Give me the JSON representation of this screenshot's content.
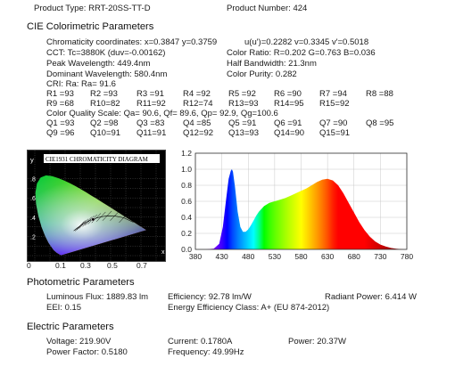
{
  "header": {
    "product_type": "Product Type: RRT-20SS-TT-D",
    "product_number": "Product Number: 424"
  },
  "cie": {
    "title": "CIE Colorimetric Parameters",
    "chromaticity": "Chromaticity coordinates: x=0.3847 y=0.3759",
    "uv": "u(u')=0.2282 v=0.3345 v'=0.5018",
    "cct": "CCT: Tc=3880K (duv=-0.00162)",
    "color_ratio": "Color Ratio: R=0.202  G=0.763  B=0.036",
    "peak_wavelength": "Peak Wavelength: 449.4nm",
    "half_bandwidth": "Half Bandwidth: 21.3nm",
    "dominant_wavelength": "Dominant Wavelength: 580.4nm",
    "color_purity": "Color Purity: 0.282",
    "cri": "CRI: Ra: Ra= 91.6",
    "r_values": [
      [
        "R1 =93",
        "R2 =93",
        "R3 =91",
        "R4 =92",
        "R5 =92",
        "R6 =90",
        "R7 =94",
        "R8 =88"
      ],
      [
        "R9 =68",
        "R10=82",
        "R11=92",
        "R12=74",
        "R13=93",
        "R14=95",
        "R15=92",
        ""
      ]
    ],
    "cqs": "Color Quality Scale: Qa= 90.6, Qf= 89.6, Qp= 92.9, Qg=100.6",
    "q_values": [
      [
        "Q1 =93",
        "Q2 =98",
        "Q3 =83",
        "Q4 =85",
        "Q5 =91",
        "Q6 =91",
        "Q7 =90",
        "Q8 =95"
      ],
      [
        "Q9 =96",
        "Q10=91",
        "Q11=91",
        "Q12=92",
        "Q13=93",
        "Q14=90",
        "Q15=91",
        ""
      ]
    ]
  },
  "cie_diagram": {
    "title": "CIE1931 CHROMATICITY DIAGRAM",
    "y_axis_letter": "y",
    "x_axis_letter": "x",
    "y_ticks": [
      ".8",
      ".6",
      ".4",
      ".2"
    ],
    "x_ticks": [
      "0",
      "0.1",
      "0.3",
      "0.5",
      "0.7"
    ],
    "measured_point": {
      "x": 0.3847,
      "y": 0.3759
    }
  },
  "chart_data": {
    "type": "area",
    "title": "",
    "xlabel": "",
    "ylabel": "",
    "xlim": [
      380,
      780
    ],
    "ylim": [
      0,
      1.2
    ],
    "x_ticks": [
      "380",
      "430",
      "480",
      "530",
      "580",
      "630",
      "680",
      "730",
      "780"
    ],
    "y_ticks": [
      "0.0",
      "0.2",
      "0.4",
      "0.6",
      "0.8",
      "1.0",
      "1.2"
    ],
    "grid": true,
    "series": [
      {
        "x": [
          380,
          400,
          415,
          425,
          432,
          438,
          443,
          447,
          449,
          451,
          455,
          460,
          465,
          470,
          475,
          480,
          485,
          490,
          495,
          500,
          510,
          520,
          530,
          540,
          550,
          560,
          570,
          580,
          590,
          600,
          610,
          620,
          630,
          640,
          650,
          660,
          670,
          680,
          690,
          700,
          710,
          720,
          730,
          740,
          750,
          760,
          770,
          780
        ],
        "y": [
          0.0,
          0.0,
          0.01,
          0.07,
          0.28,
          0.62,
          0.88,
          0.98,
          1.0,
          0.97,
          0.78,
          0.47,
          0.28,
          0.22,
          0.22,
          0.25,
          0.3,
          0.36,
          0.42,
          0.47,
          0.54,
          0.58,
          0.6,
          0.62,
          0.64,
          0.67,
          0.7,
          0.73,
          0.76,
          0.8,
          0.84,
          0.87,
          0.88,
          0.86,
          0.8,
          0.7,
          0.58,
          0.46,
          0.34,
          0.24,
          0.16,
          0.1,
          0.06,
          0.035,
          0.018,
          0.008,
          0.003,
          0.0
        ]
      }
    ]
  },
  "photometric": {
    "title": "Photometric Parameters",
    "luminous_flux": "Luminous Flux: 1889.83 lm",
    "efficiency": "Efficiency: 92.78 lm/W",
    "radiant_power": "Radiant Power: 6.414 W",
    "eei": "EEI:  0.15",
    "energy_class": "Energy Efficiency Class: A+ (EU 874-2012)"
  },
  "electric": {
    "title": "Electric Parameters",
    "voltage": "Voltage: 219.90V",
    "current": "Current: 0.1780A",
    "power": "Power: 20.37W",
    "power_factor": "Power Factor: 0.5180",
    "frequency": "Frequency: 49.99Hz"
  },
  "colors": {
    "text": "#1a1a1a",
    "grid": "#c8c8c8",
    "frame": "#333333"
  }
}
